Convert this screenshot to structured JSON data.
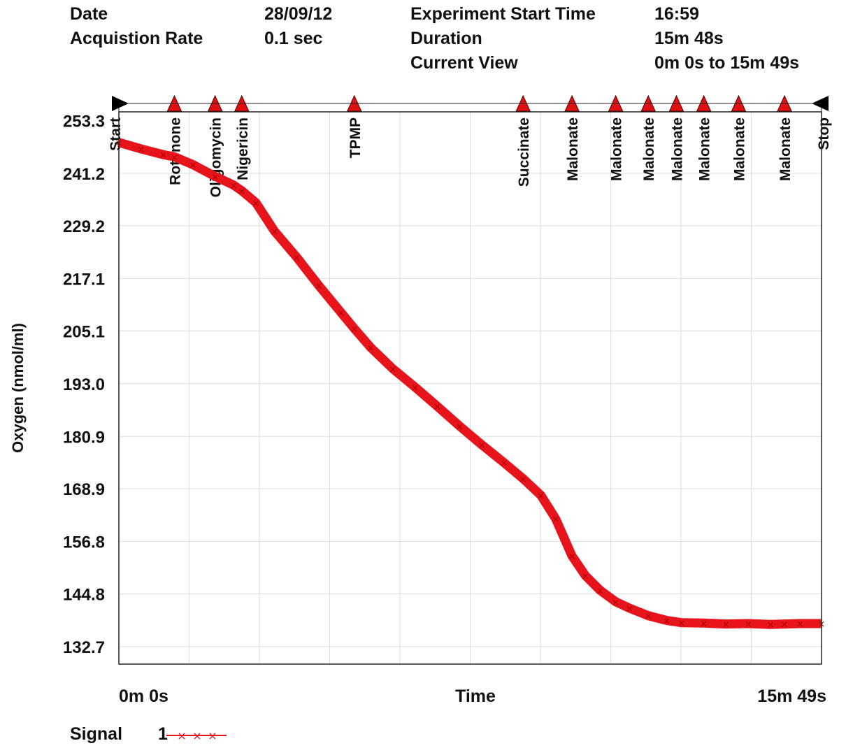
{
  "header": {
    "date_label": "Date",
    "date_value": "28/09/12",
    "rate_label": "Acquistion Rate",
    "rate_value": "0.1 sec",
    "start_label": "Experiment Start Time",
    "start_value": "16:59",
    "duration_label": "Duration",
    "duration_value": "15m 48s",
    "view_label": "Current View",
    "view_value": "0m 0s to 15m 49s"
  },
  "legend": {
    "label": "Signal",
    "series_number": "1"
  },
  "colors": {
    "signal": "#e8141c",
    "marker": "#dd1111",
    "grid": "#dddddd"
  },
  "chart_data": {
    "type": "line",
    "title": "",
    "xlabel": "Time",
    "ylabel": "Oxygen (nmol/ml)",
    "x_unit": "seconds",
    "xlim": [
      0,
      949
    ],
    "ylim": [
      128.7,
      255.3
    ],
    "yticks": [
      "253.3",
      "241.2",
      "229.2",
      "217.1",
      "205.1",
      "193.0",
      "180.9",
      "168.9",
      "156.8",
      "144.8",
      "132.7"
    ],
    "xtick_labels": [
      "0m 0s",
      "15m 49s"
    ],
    "events": [
      {
        "label": "Start",
        "t": 0,
        "kind": "start"
      },
      {
        "label": "Rotenone",
        "t": 75,
        "kind": "add"
      },
      {
        "label": "Oligomycin",
        "t": 130,
        "kind": "add"
      },
      {
        "label": "Nigericin",
        "t": 166,
        "kind": "add"
      },
      {
        "label": "TPMP",
        "t": 318,
        "kind": "add"
      },
      {
        "label": "Succinate",
        "t": 546,
        "kind": "add"
      },
      {
        "label": "Malonate",
        "t": 612,
        "kind": "add"
      },
      {
        "label": "Malonate",
        "t": 671,
        "kind": "add"
      },
      {
        "label": "Malonate",
        "t": 715,
        "kind": "add"
      },
      {
        "label": "Malonate",
        "t": 753,
        "kind": "add"
      },
      {
        "label": "Malonate",
        "t": 790,
        "kind": "add"
      },
      {
        "label": "Malonate",
        "t": 837,
        "kind": "add"
      },
      {
        "label": "Malonate",
        "t": 899,
        "kind": "add"
      },
      {
        "label": "Stop",
        "t": 949,
        "kind": "stop"
      }
    ],
    "series": [
      {
        "name": "Signal 1",
        "points": [
          [
            0,
            248.3
          ],
          [
            30,
            246.8
          ],
          [
            60,
            245.5
          ],
          [
            75,
            245.0
          ],
          [
            100,
            243.2
          ],
          [
            130,
            240.5
          ],
          [
            155,
            238.5
          ],
          [
            166,
            237.2
          ],
          [
            185,
            234.5
          ],
          [
            210,
            228.0
          ],
          [
            240,
            222.0
          ],
          [
            270,
            215.5
          ],
          [
            300,
            209.3
          ],
          [
            318,
            205.6
          ],
          [
            340,
            201.3
          ],
          [
            370,
            196.4
          ],
          [
            400,
            192.2
          ],
          [
            430,
            187.8
          ],
          [
            460,
            183.3
          ],
          [
            490,
            179.0
          ],
          [
            520,
            174.9
          ],
          [
            546,
            171.2
          ],
          [
            570,
            167.4
          ],
          [
            590,
            162.0
          ],
          [
            612,
            153.5
          ],
          [
            630,
            149.0
          ],
          [
            650,
            145.6
          ],
          [
            671,
            143.0
          ],
          [
            690,
            141.5
          ],
          [
            715,
            139.8
          ],
          [
            740,
            138.7
          ],
          [
            760,
            138.2
          ],
          [
            790,
            138.1
          ],
          [
            820,
            137.9
          ],
          [
            850,
            138.0
          ],
          [
            880,
            137.8
          ],
          [
            899,
            137.9
          ],
          [
            920,
            138.0
          ],
          [
            949,
            138.0
          ]
        ]
      }
    ]
  }
}
